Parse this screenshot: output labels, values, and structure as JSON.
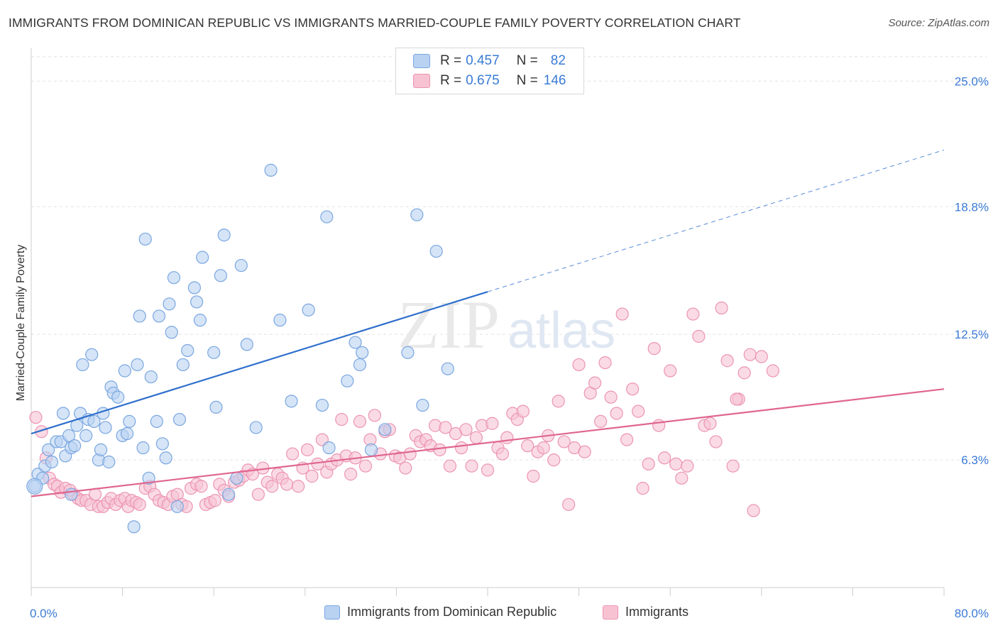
{
  "title": "IMMIGRANTS FROM DOMINICAN REPUBLIC VS IMMIGRANTS MARRIED-COUPLE FAMILY POVERTY CORRELATION CHART",
  "source": "Source: ZipAtlas.com",
  "watermark": "ZIPatlas",
  "legend": {
    "rows": [
      {
        "r_label": "R =",
        "r_value": "0.457",
        "n_label": "N =",
        "n_value": "82"
      },
      {
        "r_label": "R =",
        "r_value": "0.675",
        "n_label": "N =",
        "n_value": "146"
      }
    ]
  },
  "bottom_legend": [
    "Immigrants from Dominican Republic",
    "Immigrants"
  ],
  "colors": {
    "blue_fill": "#b9d2f2",
    "blue_stroke": "#7aa7e0",
    "blue_line": "#2f6fcc",
    "pink_fill": "#f7c3d3",
    "pink_stroke": "#ec94b2",
    "pink_line": "#e0668f",
    "tick_text": "#3a7bd5",
    "grid": "#e2e2e2"
  },
  "chart_data": {
    "type": "scatter",
    "title": "IMMIGRANTS FROM DOMINICAN REPUBLIC VS IMMIGRANTS MARRIED-COUPLE FAMILY POVERTY CORRELATION CHART",
    "xlabel": "",
    "ylabel": "Married-Couple Family Poverty",
    "xlim": [
      0,
      80
    ],
    "ylim": [
      0,
      26.2
    ],
    "x_tick_labels": [
      "0.0%",
      "80.0%"
    ],
    "y_ticks": [
      6.3,
      12.5,
      18.8,
      25.0
    ],
    "y_tick_labels": [
      "6.3%",
      "12.5%",
      "18.8%",
      "25.0%"
    ],
    "grid": "horizontal dashed",
    "series": [
      {
        "name": "Immigrants from Dominican Republic",
        "color": "blue",
        "trend": {
          "x": [
            0,
            40
          ],
          "y": [
            7.6,
            14.6
          ],
          "dashed_extension": {
            "x": [
              40,
              80
            ],
            "y": [
              14.6,
              21.6
            ]
          }
        },
        "points": [
          [
            0.3,
            5.0
          ],
          [
            0.6,
            5.6
          ],
          [
            1.0,
            5.4
          ],
          [
            1.2,
            6.0
          ],
          [
            1.5,
            6.8
          ],
          [
            1.8,
            6.2
          ],
          [
            2.2,
            7.2
          ],
          [
            2.6,
            7.2
          ],
          [
            2.8,
            8.6
          ],
          [
            3.0,
            6.5
          ],
          [
            3.3,
            7.5
          ],
          [
            3.5,
            6.9
          ],
          [
            3.8,
            7.0
          ],
          [
            4.0,
            8.0
          ],
          [
            4.3,
            8.6
          ],
          [
            4.5,
            11.0
          ],
          [
            4.8,
            7.5
          ],
          [
            5.0,
            8.3
          ],
          [
            5.3,
            11.5
          ],
          [
            5.5,
            8.2
          ],
          [
            5.9,
            6.3
          ],
          [
            6.1,
            6.8
          ],
          [
            6.3,
            8.6
          ],
          [
            6.5,
            7.9
          ],
          [
            6.8,
            6.2
          ],
          [
            7.0,
            9.9
          ],
          [
            7.2,
            9.6
          ],
          [
            7.6,
            9.4
          ],
          [
            8.0,
            7.5
          ],
          [
            8.2,
            10.7
          ],
          [
            8.4,
            7.6
          ],
          [
            8.6,
            8.2
          ],
          [
            9.3,
            11.0
          ],
          [
            9.5,
            13.4
          ],
          [
            9.8,
            6.9
          ],
          [
            10.0,
            17.2
          ],
          [
            10.3,
            5.4
          ],
          [
            10.5,
            10.4
          ],
          [
            11.0,
            8.2
          ],
          [
            11.2,
            13.4
          ],
          [
            11.5,
            7.1
          ],
          [
            11.8,
            6.4
          ],
          [
            12.1,
            14.0
          ],
          [
            12.3,
            12.6
          ],
          [
            12.5,
            15.3
          ],
          [
            12.8,
            4.0
          ],
          [
            13.0,
            8.3
          ],
          [
            13.3,
            11.0
          ],
          [
            13.7,
            11.7
          ],
          [
            14.3,
            14.8
          ],
          [
            14.5,
            14.1
          ],
          [
            14.8,
            13.2
          ],
          [
            15.0,
            16.3
          ],
          [
            16.0,
            11.6
          ],
          [
            16.2,
            8.9
          ],
          [
            16.6,
            15.4
          ],
          [
            16.9,
            17.4
          ],
          [
            17.3,
            4.6
          ],
          [
            18.0,
            5.4
          ],
          [
            18.4,
            15.9
          ],
          [
            18.9,
            12.0
          ],
          [
            19.7,
            7.9
          ],
          [
            21.0,
            20.6
          ],
          [
            21.8,
            13.2
          ],
          [
            22.8,
            9.2
          ],
          [
            24.3,
            13.7
          ],
          [
            25.5,
            9.0
          ],
          [
            25.9,
            18.3
          ],
          [
            26.1,
            6.9
          ],
          [
            27.7,
            10.2
          ],
          [
            28.4,
            12.1
          ],
          [
            28.8,
            11.0
          ],
          [
            29.0,
            11.6
          ],
          [
            29.8,
            6.8
          ],
          [
            31.0,
            7.8
          ],
          [
            33.0,
            11.6
          ],
          [
            33.8,
            18.4
          ],
          [
            34.3,
            9.0
          ],
          [
            35.5,
            16.6
          ],
          [
            36.5,
            10.8
          ],
          [
            9.0,
            3.0
          ],
          [
            3.5,
            4.6
          ]
        ]
      },
      {
        "name": "Immigrants",
        "color": "pink",
        "trend": {
          "x": [
            0,
            80
          ],
          "y": [
            4.5,
            9.8
          ]
        },
        "points": [
          [
            0.4,
            8.4
          ],
          [
            0.9,
            7.7
          ],
          [
            1.3,
            6.4
          ],
          [
            1.6,
            5.4
          ],
          [
            2.0,
            5.1
          ],
          [
            2.3,
            5.0
          ],
          [
            2.6,
            4.7
          ],
          [
            3.0,
            4.9
          ],
          [
            3.4,
            4.8
          ],
          [
            3.7,
            4.6
          ],
          [
            4.1,
            4.4
          ],
          [
            4.4,
            4.3
          ],
          [
            4.8,
            4.3
          ],
          [
            5.2,
            4.1
          ],
          [
            5.6,
            4.6
          ],
          [
            5.9,
            4.0
          ],
          [
            6.3,
            4.0
          ],
          [
            6.7,
            4.2
          ],
          [
            7.0,
            4.4
          ],
          [
            7.4,
            4.1
          ],
          [
            7.8,
            4.3
          ],
          [
            8.2,
            4.4
          ],
          [
            8.5,
            4.0
          ],
          [
            8.8,
            4.3
          ],
          [
            9.2,
            4.2
          ],
          [
            9.5,
            4.1
          ],
          [
            10.0,
            4.9
          ],
          [
            10.4,
            5.0
          ],
          [
            10.8,
            4.6
          ],
          [
            11.2,
            4.3
          ],
          [
            11.6,
            4.2
          ],
          [
            12.0,
            4.1
          ],
          [
            12.4,
            4.5
          ],
          [
            12.8,
            4.6
          ],
          [
            13.2,
            4.1
          ],
          [
            13.6,
            4.0
          ],
          [
            14.0,
            4.9
          ],
          [
            14.5,
            5.1
          ],
          [
            14.9,
            5.0
          ],
          [
            15.3,
            4.1
          ],
          [
            15.7,
            4.2
          ],
          [
            16.1,
            4.3
          ],
          [
            16.5,
            5.1
          ],
          [
            16.9,
            4.8
          ],
          [
            17.3,
            4.5
          ],
          [
            17.8,
            5.2
          ],
          [
            18.2,
            5.3
          ],
          [
            18.6,
            5.5
          ],
          [
            19.0,
            5.8
          ],
          [
            19.4,
            5.6
          ],
          [
            19.9,
            4.6
          ],
          [
            20.3,
            5.9
          ],
          [
            20.7,
            5.2
          ],
          [
            21.1,
            5.0
          ],
          [
            21.6,
            5.6
          ],
          [
            22.0,
            5.4
          ],
          [
            22.4,
            5.1
          ],
          [
            22.9,
            6.6
          ],
          [
            23.4,
            5.0
          ],
          [
            23.8,
            5.9
          ],
          [
            24.2,
            6.8
          ],
          [
            24.6,
            5.5
          ],
          [
            25.1,
            6.1
          ],
          [
            25.5,
            7.3
          ],
          [
            25.9,
            5.7
          ],
          [
            26.3,
            6.1
          ],
          [
            26.8,
            6.3
          ],
          [
            27.2,
            8.3
          ],
          [
            27.6,
            6.5
          ],
          [
            28.0,
            5.6
          ],
          [
            28.4,
            6.4
          ],
          [
            28.8,
            8.2
          ],
          [
            29.3,
            6.0
          ],
          [
            29.7,
            7.3
          ],
          [
            30.1,
            8.5
          ],
          [
            30.6,
            6.6
          ],
          [
            31.0,
            7.7
          ],
          [
            31.4,
            7.8
          ],
          [
            31.9,
            6.5
          ],
          [
            32.3,
            6.4
          ],
          [
            32.8,
            5.9
          ],
          [
            33.2,
            6.6
          ],
          [
            33.7,
            7.5
          ],
          [
            34.1,
            7.2
          ],
          [
            34.6,
            7.3
          ],
          [
            35.0,
            7.0
          ],
          [
            35.4,
            8.0
          ],
          [
            35.8,
            6.8
          ],
          [
            36.3,
            7.9
          ],
          [
            36.7,
            6.0
          ],
          [
            37.2,
            7.6
          ],
          [
            37.7,
            6.9
          ],
          [
            38.1,
            7.8
          ],
          [
            38.6,
            6.0
          ],
          [
            39.0,
            7.4
          ],
          [
            39.5,
            8.0
          ],
          [
            40.0,
            5.8
          ],
          [
            40.4,
            8.1
          ],
          [
            40.9,
            6.9
          ],
          [
            41.3,
            6.6
          ],
          [
            41.7,
            7.4
          ],
          [
            42.2,
            8.6
          ],
          [
            42.6,
            8.3
          ],
          [
            43.1,
            8.7
          ],
          [
            43.5,
            7.0
          ],
          [
            44.0,
            5.5
          ],
          [
            44.4,
            6.7
          ],
          [
            44.9,
            6.9
          ],
          [
            45.3,
            7.5
          ],
          [
            45.8,
            6.3
          ],
          [
            46.2,
            9.2
          ],
          [
            46.7,
            7.2
          ],
          [
            47.1,
            4.1
          ],
          [
            47.6,
            6.9
          ],
          [
            48.0,
            11.0
          ],
          [
            48.5,
            6.7
          ],
          [
            49.0,
            9.6
          ],
          [
            49.4,
            10.1
          ],
          [
            49.9,
            8.2
          ],
          [
            50.3,
            11.1
          ],
          [
            50.8,
            9.4
          ],
          [
            51.3,
            8.6
          ],
          [
            51.8,
            13.5
          ],
          [
            52.2,
            7.3
          ],
          [
            52.7,
            9.8
          ],
          [
            53.2,
            8.7
          ],
          [
            53.6,
            4.9
          ],
          [
            54.1,
            6.1
          ],
          [
            54.6,
            11.8
          ],
          [
            55.0,
            8.0
          ],
          [
            55.5,
            6.4
          ],
          [
            56.0,
            10.7
          ],
          [
            56.5,
            6.1
          ],
          [
            57.0,
            5.4
          ],
          [
            57.5,
            6.0
          ],
          [
            58.0,
            13.5
          ],
          [
            58.5,
            12.4
          ],
          [
            59.0,
            8.0
          ],
          [
            59.5,
            8.1
          ],
          [
            60.0,
            7.2
          ],
          [
            60.5,
            13.8
          ],
          [
            61.0,
            11.2
          ],
          [
            61.5,
            6.0
          ],
          [
            62.0,
            9.3
          ],
          [
            62.5,
            10.6
          ],
          [
            63.0,
            11.5
          ],
          [
            63.3,
            3.8
          ],
          [
            64.0,
            11.4
          ],
          [
            65.0,
            10.7
          ],
          [
            61.8,
            9.3
          ]
        ]
      }
    ]
  }
}
